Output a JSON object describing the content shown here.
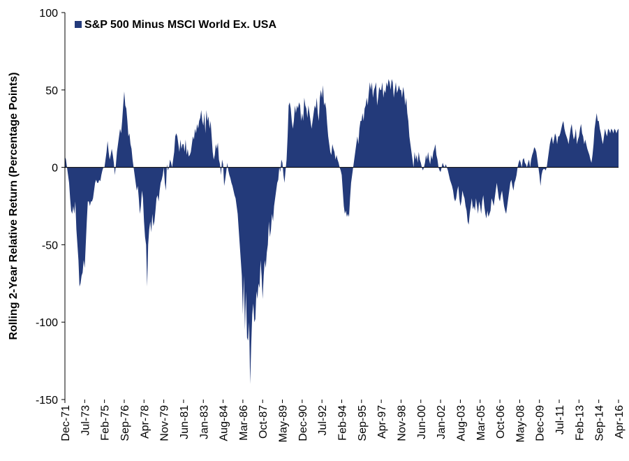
{
  "chart_data": {
    "type": "area",
    "ylabel": "Rolling 2-Year Relative Return (Percentage Points)",
    "ylim": [
      -150,
      100
    ],
    "yticks": [
      -150,
      -100,
      -50,
      0,
      50,
      100
    ],
    "grid": false,
    "legend": "top-left",
    "categories": [
      "Dec-71",
      null,
      null,
      null,
      null,
      null,
      null,
      null,
      null,
      null,
      null,
      null,
      null,
      null,
      null,
      null,
      null,
      null,
      null,
      "Jul-73",
      null,
      null,
      null,
      null,
      null,
      null,
      null,
      null,
      null,
      null,
      null,
      null,
      null,
      null,
      null,
      null,
      null,
      null,
      "Feb-75",
      null,
      null,
      null,
      null,
      null,
      null,
      null,
      null,
      null,
      null,
      null,
      null,
      null,
      null,
      null,
      null,
      null,
      null,
      "Sep-76",
      null,
      null,
      null,
      null,
      null,
      null,
      null,
      null,
      null,
      null,
      null,
      null,
      null,
      null,
      null,
      null,
      null,
      null,
      "Apr-78",
      null,
      null,
      null,
      null,
      null,
      null,
      null,
      null,
      null,
      null,
      null,
      null,
      null,
      null,
      null,
      null,
      null,
      null,
      "Nov-79",
      null,
      null,
      null,
      null,
      null,
      null,
      null,
      null,
      null,
      null,
      null,
      null,
      null,
      null,
      null,
      null,
      null,
      null,
      "Jun-81",
      null,
      null,
      null,
      null,
      null,
      null,
      null,
      null,
      null,
      null,
      null,
      null,
      null,
      null,
      null,
      null,
      null,
      null,
      "Jan-83",
      null,
      null,
      null,
      null,
      null,
      null,
      null,
      null,
      null,
      null,
      null,
      null,
      null,
      null,
      null,
      null,
      null,
      null,
      "Aug-84",
      null,
      null,
      null,
      null,
      null,
      null,
      null,
      null,
      null,
      null,
      null,
      null,
      null,
      null,
      null,
      null,
      null,
      null,
      "Mar-86",
      null,
      null,
      null,
      null,
      null,
      null,
      null,
      null,
      null,
      null,
      null,
      null,
      null,
      null,
      null,
      null,
      null,
      null,
      "Oct-87",
      null,
      null,
      null,
      null,
      null,
      null,
      null,
      null,
      null,
      null,
      null,
      null,
      null,
      null,
      null,
      null,
      null,
      null,
      "May-89",
      null,
      null,
      null,
      null,
      null,
      null,
      null,
      null,
      null,
      null,
      null,
      null,
      null,
      null,
      null,
      null,
      null,
      null,
      "Dec-90",
      null,
      null,
      null,
      null,
      null,
      null,
      null,
      null,
      null,
      null,
      null,
      null,
      null,
      null,
      null,
      null,
      null,
      null,
      "Jul-92",
      null,
      null,
      null,
      null,
      null,
      null,
      null,
      null,
      null,
      null,
      null,
      null,
      null,
      null,
      null,
      null,
      null,
      null,
      "Feb-94",
      null,
      null,
      null,
      null,
      null,
      null,
      null,
      null,
      null,
      null,
      null,
      null,
      null,
      null,
      null,
      null,
      null,
      null,
      "Sep-95",
      null,
      null,
      null,
      null,
      null,
      null,
      null,
      null,
      null,
      null,
      null,
      null,
      null,
      null,
      null,
      null,
      null,
      null,
      "Apr-97",
      null,
      null,
      null,
      null,
      null,
      null,
      null,
      null,
      null,
      null,
      null,
      null,
      null,
      null,
      null,
      null,
      null,
      null,
      "Nov-98",
      null,
      null,
      null,
      null,
      null,
      null,
      null,
      null,
      null,
      null,
      null,
      null,
      null,
      null,
      null,
      null,
      null,
      null,
      "Jun-00",
      null,
      null,
      null,
      null,
      null,
      null,
      null,
      null,
      null,
      null,
      null,
      null,
      null,
      null,
      null,
      null,
      null,
      null,
      "Jan-02",
      null,
      null,
      null,
      null,
      null,
      null,
      null,
      null,
      null,
      null,
      null,
      null,
      null,
      null,
      null,
      null,
      null,
      null,
      "Aug-03",
      null,
      null,
      null,
      null,
      null,
      null,
      null,
      null,
      null,
      null,
      null,
      null,
      null,
      null,
      null,
      null,
      null,
      null,
      "Mar-05",
      null,
      null,
      null,
      null,
      null,
      null,
      null,
      null,
      null,
      null,
      null,
      null,
      null,
      null,
      null,
      null,
      null,
      null,
      "Oct-06",
      null,
      null,
      null,
      null,
      null,
      null,
      null,
      null,
      null,
      null,
      null,
      null,
      null,
      null,
      null,
      null,
      null,
      null,
      "May-08",
      null,
      null,
      null,
      null,
      null,
      null,
      null,
      null,
      null,
      null,
      null,
      null,
      null,
      null,
      null,
      null,
      null,
      null,
      "Dec-09",
      null,
      null,
      null,
      null,
      null,
      null,
      null,
      null,
      null,
      null,
      null,
      null,
      null,
      null,
      null,
      null,
      null,
      null,
      "Jul-11",
      null,
      null,
      null,
      null,
      null,
      null,
      null,
      null,
      null,
      null,
      null,
      null,
      null,
      null,
      null,
      null,
      null,
      null,
      "Feb-13",
      null,
      null,
      null,
      null,
      null,
      null,
      null,
      null,
      null,
      null,
      null,
      null,
      null,
      null,
      null,
      null,
      null,
      null,
      "Sep-14",
      null,
      null,
      null,
      null,
      null,
      null,
      null,
      null,
      null,
      null,
      null,
      null,
      null,
      null,
      null,
      null,
      null,
      null,
      "Apr-16"
    ],
    "series": [
      {
        "name": "S&P 500 Minus MSCI World Ex. USA",
        "color": "#233a7a",
        "values": [
          7,
          5,
          0,
          -5,
          -10,
          -20,
          -28,
          -30,
          -25,
          -30,
          -22,
          -40,
          -50,
          -60,
          -77,
          -75,
          -70,
          -68,
          -60,
          -65,
          -50,
          -35,
          -22,
          -22,
          -25,
          -22,
          -22,
          -20,
          -15,
          -10,
          -8,
          -10,
          -10,
          -8,
          -9,
          -5,
          -2,
          0,
          0,
          5,
          10,
          17,
          10,
          5,
          8,
          12,
          8,
          3,
          -5,
          2,
          10,
          15,
          20,
          25,
          22,
          30,
          40,
          49,
          40,
          38,
          30,
          20,
          22,
          15,
          12,
          5,
          0,
          -5,
          -10,
          -15,
          -12,
          -20,
          -30,
          -25,
          -15,
          -20,
          -35,
          -45,
          -50,
          -77,
          -50,
          -40,
          -35,
          -42,
          -30,
          -38,
          -35,
          -28,
          -20,
          -18,
          -22,
          -15,
          -10,
          -8,
          -5,
          0,
          -10,
          -15,
          2,
          -2,
          0,
          5,
          3,
          0,
          5,
          10,
          20,
          22,
          20,
          15,
          10,
          18,
          12,
          15,
          15,
          10,
          18,
          8,
          12,
          7,
          8,
          10,
          15,
          20,
          18,
          25,
          22,
          28,
          25,
          30,
          32,
          37,
          30,
          27,
          35,
          22,
          37,
          30,
          33,
          25,
          30,
          20,
          10,
          5,
          8,
          15,
          12,
          16,
          5,
          2,
          -5,
          5,
          2,
          -12,
          -8,
          -3,
          3,
          -2,
          -5,
          -7,
          -10,
          -12,
          -15,
          -18,
          -20,
          -25,
          -30,
          -40,
          -50,
          -60,
          -70,
          -95,
          -70,
          -105,
          -80,
          -110,
          -112,
          -100,
          -140,
          -115,
          -95,
          -88,
          -100,
          -98,
          -80,
          -85,
          -75,
          -78,
          -60,
          -70,
          -85,
          -70,
          -60,
          -65,
          -55,
          -50,
          -35,
          -45,
          -40,
          -30,
          -35,
          -25,
          -20,
          -15,
          -10,
          -8,
          0,
          -3,
          5,
          3,
          -5,
          -10,
          -2,
          5,
          20,
          40,
          42,
          38,
          30,
          25,
          30,
          40,
          35,
          40,
          38,
          42,
          40,
          30,
          35,
          30,
          45,
          40,
          38,
          32,
          40,
          35,
          30,
          25,
          30,
          35,
          40,
          38,
          45,
          35,
          30,
          45,
          50,
          45,
          53,
          40,
          42,
          38,
          28,
          20,
          15,
          10,
          8,
          15,
          12,
          10,
          5,
          8,
          5,
          3,
          0,
          -2,
          -5,
          -15,
          -25,
          -30,
          -28,
          -32,
          -30,
          -32,
          -20,
          -10,
          -5,
          0,
          5,
          10,
          15,
          20,
          15,
          25,
          30,
          30,
          35,
          30,
          38,
          40,
          45,
          40,
          48,
          55,
          50,
          55,
          45,
          50,
          52,
          55,
          40,
          45,
          52,
          50,
          50,
          55,
          45,
          50,
          48,
          55,
          52,
          57,
          55,
          50,
          57,
          55,
          45,
          50,
          55,
          48,
          50,
          53,
          50,
          50,
          45,
          52,
          48,
          40,
          45,
          35,
          30,
          20,
          15,
          10,
          5,
          0,
          10,
          5,
          8,
          3,
          10,
          5,
          3,
          0,
          -2,
          0,
          3,
          8,
          5,
          10,
          5,
          2,
          8,
          5,
          10,
          12,
          15,
          8,
          5,
          0,
          -2,
          -3,
          0,
          3,
          1,
          0,
          2,
          0,
          -2,
          -5,
          -8,
          -10,
          -12,
          -15,
          -20,
          -22,
          -20,
          -15,
          -12,
          -20,
          -25,
          -22,
          -15,
          -18,
          -20,
          -25,
          -28,
          -35,
          -37,
          -30,
          -25,
          -20,
          -27,
          -25,
          -28,
          -20,
          -25,
          -30,
          -22,
          -25,
          -30,
          -22,
          -18,
          -25,
          -30,
          -33,
          -28,
          -32,
          -30,
          -28,
          -20,
          -22,
          -25,
          -20,
          -15,
          -10,
          -15,
          -20,
          -22,
          -18,
          -15,
          -20,
          -25,
          -28,
          -30,
          -25,
          -20,
          -15,
          -10,
          -8,
          -12,
          -15,
          -10,
          -8,
          -5,
          0,
          3,
          5,
          3,
          0,
          5,
          6,
          3,
          2,
          0,
          3,
          5,
          0,
          5,
          8,
          10,
          13,
          12,
          10,
          5,
          0,
          -5,
          -12,
          -5,
          -2,
          -1,
          -1,
          -2,
          0,
          5,
          10,
          15,
          18,
          20,
          15,
          18,
          22,
          20,
          15,
          20,
          20,
          22,
          25,
          28,
          30,
          25,
          22,
          20,
          18,
          15,
          20,
          25,
          28,
          22,
          18,
          20,
          25,
          15,
          18,
          20,
          25,
          28,
          22,
          20,
          15,
          18,
          15,
          12,
          10,
          8,
          5,
          3,
          8,
          15,
          25,
          30,
          35,
          30,
          30,
          25,
          22,
          18,
          15,
          20,
          25,
          22,
          20,
          25,
          24,
          22,
          25,
          24,
          22,
          25,
          24,
          22,
          24,
          25
        ]
      }
    ]
  }
}
